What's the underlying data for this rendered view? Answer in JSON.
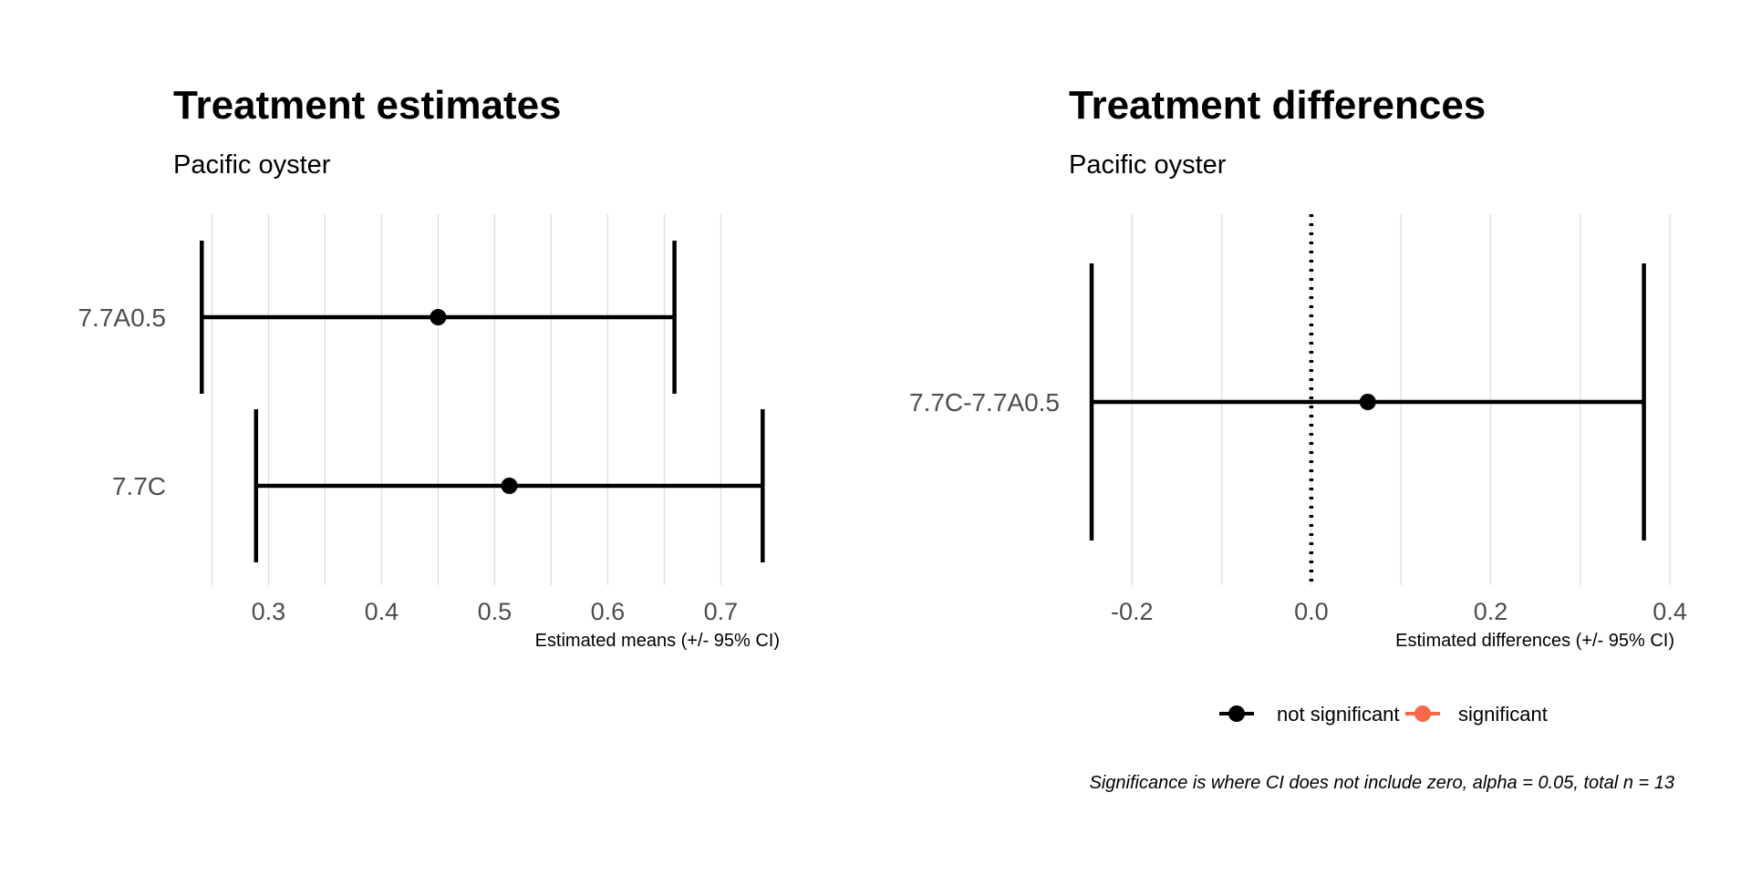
{
  "chart_data": [
    {
      "type": "errorbar",
      "title": "Treatment estimates",
      "subtitle": "Pacific oyster",
      "xlabel": "Estimated means (+/- 95% CI)",
      "ylabel": "",
      "xlim": [
        0.24,
        0.74
      ],
      "xticks": [
        0.3,
        0.4,
        0.5,
        0.6,
        0.7
      ],
      "xtick_labels": [
        "0.3",
        "0.4",
        "0.5",
        "0.6",
        "0.7"
      ],
      "grid": true,
      "categories": [
        "7.7A0.5",
        "7.7C"
      ],
      "estimate": [
        0.45,
        0.513
      ],
      "lower": [
        0.241,
        0.289
      ],
      "upper": [
        0.659,
        0.737
      ]
    },
    {
      "type": "errorbar",
      "title": "Treatment differences",
      "subtitle": "Pacific oyster",
      "xlabel": "Estimated differences (+/- 95% CI)",
      "ylabel": "",
      "xlim": [
        -0.245,
        0.405
      ],
      "xticks": [
        -0.2,
        0.0,
        0.2,
        0.4
      ],
      "xtick_labels": [
        "-0.2",
        "0.0",
        "0.2",
        "0.4"
      ],
      "grid": true,
      "reference_line": 0,
      "categories": [
        "7.7C-7.7A0.5"
      ],
      "estimate": [
        0.063
      ],
      "lower": [
        -0.245
      ],
      "upper": [
        0.371
      ],
      "significance": [
        "not significant"
      ]
    }
  ],
  "legend": {
    "position": "bottom",
    "items": [
      {
        "label": "not significant",
        "color": "#000000"
      },
      {
        "label": "significant",
        "color": "#f8694a"
      }
    ]
  },
  "caption": "Significance is where CI does not include zero, alpha = 0.05, total n = 13"
}
